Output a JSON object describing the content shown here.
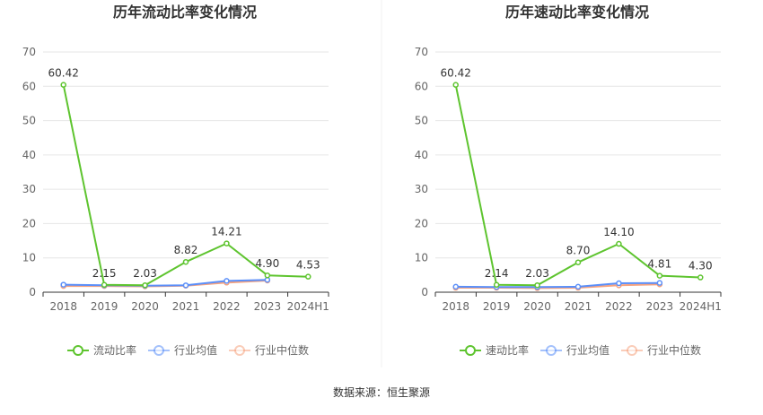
{
  "colors": {
    "main": "#5ec42f",
    "avg": "#5b8ff9",
    "median": "#f6a37f",
    "grid": "#e6e6e6",
    "axis": "#333333"
  },
  "legend_items_left": [
    "流动比率",
    "行业均值",
    "行业中位数"
  ],
  "legend_items_right": [
    "速动比率",
    "行业均值",
    "行业中位数"
  ],
  "source": "数据来源：恒生聚源",
  "chart_data": [
    {
      "type": "line",
      "title": "历年流动比率变化情况",
      "categories": [
        "2018",
        "2019",
        "2020",
        "2021",
        "2022",
        "2023",
        "2024H1"
      ],
      "yticks": [
        "0",
        "10",
        "20",
        "30",
        "40",
        "50",
        "60",
        "70"
      ],
      "ylim": [
        0,
        70
      ],
      "grid": true,
      "legend_position": "bottom",
      "series": [
        {
          "name": "流动比率",
          "values": [
            60.42,
            2.15,
            2.03,
            8.82,
            14.21,
            4.9,
            4.53
          ],
          "labels": [
            "60.42",
            "2.15",
            "2.03",
            "8.82",
            "14.21",
            "4.90",
            "4.53"
          ]
        },
        {
          "name": "行业均值",
          "values": [
            2.2,
            2.0,
            1.9,
            2.0,
            3.3,
            3.6,
            null
          ]
        },
        {
          "name": "行业中位数",
          "values": [
            1.8,
            1.8,
            1.7,
            1.9,
            2.8,
            3.4,
            null
          ]
        }
      ]
    },
    {
      "type": "line",
      "title": "历年速动比率变化情况",
      "categories": [
        "2018",
        "2019",
        "2020",
        "2021",
        "2022",
        "2023",
        "2024H1"
      ],
      "yticks": [
        "0",
        "10",
        "20",
        "30",
        "40",
        "50",
        "60",
        "70"
      ],
      "ylim": [
        0,
        70
      ],
      "grid": true,
      "legend_position": "bottom",
      "series": [
        {
          "name": "速动比率",
          "values": [
            60.42,
            2.14,
            2.03,
            8.7,
            14.1,
            4.81,
            4.3
          ],
          "labels": [
            "60.42",
            "2.14",
            "2.03",
            "8.70",
            "14.10",
            "4.81",
            "4.30"
          ]
        },
        {
          "name": "行业均值",
          "values": [
            1.6,
            1.5,
            1.5,
            1.6,
            2.6,
            2.7,
            null
          ]
        },
        {
          "name": "行业中位数",
          "values": [
            1.3,
            1.3,
            1.2,
            1.3,
            2.0,
            2.3,
            null
          ]
        }
      ]
    }
  ]
}
